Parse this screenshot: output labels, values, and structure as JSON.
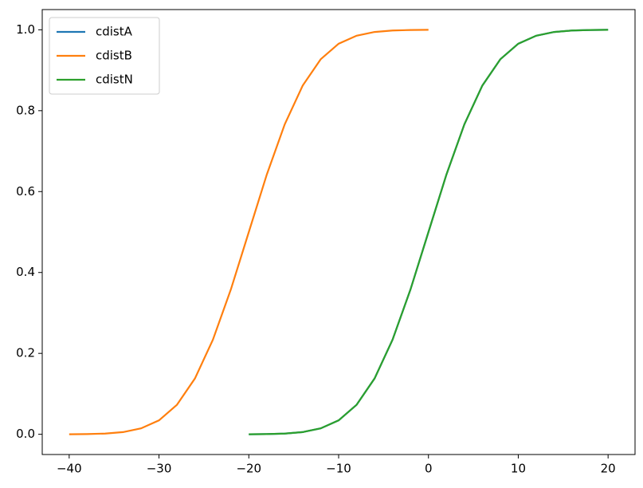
{
  "chart_data": {
    "type": "line",
    "series": [
      {
        "name": "cdistA",
        "color": "#1f77b4",
        "x": [
          -20,
          -18,
          -16,
          -14,
          -12,
          -10,
          -8,
          -6,
          -4,
          -2,
          0,
          2,
          4,
          6,
          8,
          10,
          12,
          14,
          16,
          18,
          20
        ],
        "values": [
          0.0001,
          0.0005,
          0.0018,
          0.0054,
          0.0146,
          0.0344,
          0.0729,
          0.1379,
          0.2336,
          0.358,
          0.5,
          0.642,
          0.7664,
          0.8621,
          0.9271,
          0.9656,
          0.9854,
          0.9946,
          0.9982,
          0.9995,
          0.9999
        ]
      },
      {
        "name": "cdistB",
        "color": "#ff7f0e",
        "x": [
          -40,
          -38,
          -36,
          -34,
          -32,
          -30,
          -28,
          -26,
          -24,
          -22,
          -20,
          -18,
          -16,
          -14,
          -12,
          -10,
          -8,
          -6,
          -4,
          -2,
          0
        ],
        "values": [
          0.0001,
          0.0005,
          0.0018,
          0.0054,
          0.0146,
          0.0344,
          0.0729,
          0.1379,
          0.2336,
          0.358,
          0.5,
          0.642,
          0.7664,
          0.8621,
          0.9271,
          0.9656,
          0.9854,
          0.9946,
          0.9982,
          0.9995,
          0.9999
        ]
      },
      {
        "name": "cdistN",
        "color": "#2ca02c",
        "x": [
          -20,
          -18,
          -16,
          -14,
          -12,
          -10,
          -8,
          -6,
          -4,
          -2,
          0,
          2,
          4,
          6,
          8,
          10,
          12,
          14,
          16,
          18,
          20
        ],
        "values": [
          0.0001,
          0.0005,
          0.0018,
          0.0054,
          0.0146,
          0.0344,
          0.0729,
          0.1379,
          0.2336,
          0.358,
          0.5,
          0.642,
          0.7664,
          0.8621,
          0.9271,
          0.9656,
          0.9854,
          0.9946,
          0.9982,
          0.9995,
          0.9999
        ]
      }
    ],
    "xlim": [
      -43,
      23
    ],
    "xticks": [
      {
        "value": -40,
        "label": "−40"
      },
      {
        "value": -30,
        "label": "−30"
      },
      {
        "value": -20,
        "label": "−20"
      },
      {
        "value": -10,
        "label": "−10"
      },
      0,
      10,
      20
    ],
    "ylim": [
      -0.05,
      1.05
    ],
    "yticks": [
      {
        "value": 0,
        "label": "0.0"
      },
      0.2,
      0.4,
      0.6,
      0.8,
      {
        "value": 1,
        "label": "1.0"
      }
    ],
    "grid": false,
    "legend": "upper left"
  }
}
